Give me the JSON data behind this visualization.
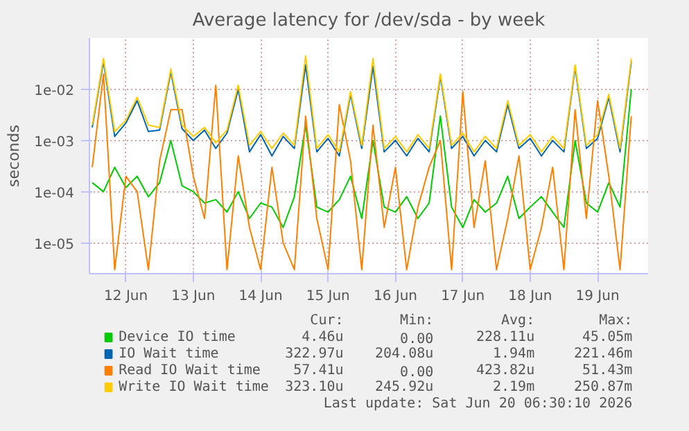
{
  "chart_data": {
    "type": "line",
    "title": "Average latency for /dev/sda - by week",
    "ylabel": "seconds",
    "log": "y",
    "grid": true,
    "legend": "bottom",
    "line_style": "solid",
    "ylim": [
      2.5e-06,
      0.1
    ],
    "yticks": [
      {
        "value": 1e-05,
        "label": "1e-05"
      },
      {
        "value": 0.0001,
        "label": "1e-04"
      },
      {
        "value": 0.001,
        "label": "1e-03"
      },
      {
        "value": 0.01,
        "label": "1e-02"
      }
    ],
    "xlim": [
      "2026-06-11T11:00",
      "2026-06-19T18:00"
    ],
    "xticks": [
      {
        "value": "2026-06-12",
        "label": "12 Jun"
      },
      {
        "value": "2026-06-13",
        "label": "13 Jun"
      },
      {
        "value": "2026-06-14",
        "label": "14 Jun"
      },
      {
        "value": "2026-06-15",
        "label": "15 Jun"
      },
      {
        "value": "2026-06-16",
        "label": "16 Jun"
      },
      {
        "value": "2026-06-17",
        "label": "17 Jun"
      },
      {
        "value": "2026-06-18",
        "label": "18 Jun"
      },
      {
        "value": "2026-06-19",
        "label": "19 Jun"
      }
    ],
    "x": [
      "2026-06-11T12:00",
      "2026-06-11T16:00",
      "2026-06-11T20:00",
      "2026-06-12T00:00",
      "2026-06-12T04:00",
      "2026-06-12T08:00",
      "2026-06-12T12:00",
      "2026-06-12T16:00",
      "2026-06-12T20:00",
      "2026-06-13T00:00",
      "2026-06-13T04:00",
      "2026-06-13T08:00",
      "2026-06-13T12:00",
      "2026-06-13T16:00",
      "2026-06-13T20:00",
      "2026-06-14T00:00",
      "2026-06-14T04:00",
      "2026-06-14T08:00",
      "2026-06-14T12:00",
      "2026-06-14T16:00",
      "2026-06-14T20:00",
      "2026-06-15T00:00",
      "2026-06-15T04:00",
      "2026-06-15T08:00",
      "2026-06-15T12:00",
      "2026-06-15T16:00",
      "2026-06-15T20:00",
      "2026-06-16T00:00",
      "2026-06-16T04:00",
      "2026-06-16T08:00",
      "2026-06-16T12:00",
      "2026-06-16T16:00",
      "2026-06-16T20:00",
      "2026-06-17T00:00",
      "2026-06-17T04:00",
      "2026-06-17T08:00",
      "2026-06-17T12:00",
      "2026-06-17T16:00",
      "2026-06-17T20:00",
      "2026-06-18T00:00",
      "2026-06-18T04:00",
      "2026-06-18T08:00",
      "2026-06-18T12:00",
      "2026-06-18T16:00",
      "2026-06-18T20:00",
      "2026-06-19T00:00",
      "2026-06-19T04:00",
      "2026-06-19T08:00",
      "2026-06-19T12:00"
    ],
    "series": [
      {
        "name": "Device IO time",
        "color": "#00cc00",
        "values": [
          0.00015,
          0.0001,
          0.0003,
          0.00012,
          0.0002,
          8e-05,
          0.00015,
          0.001,
          0.00013,
          0.0001,
          6e-05,
          7e-05,
          4e-05,
          0.0001,
          3e-05,
          6e-05,
          5e-05,
          2e-05,
          8e-05,
          0.002,
          5e-05,
          4e-05,
          7e-05,
          0.0002,
          3e-05,
          0.001,
          5e-05,
          4e-05,
          8e-05,
          3e-05,
          6e-05,
          0.003,
          5e-05,
          2e-05,
          7e-05,
          4e-05,
          6e-05,
          0.0002,
          3e-05,
          5e-05,
          8e-05,
          4e-05,
          2e-05,
          0.001,
          6e-05,
          4e-05,
          0.00015,
          5e-05,
          0.01
        ]
      },
      {
        "name": "IO Wait time",
        "color": "#0066b3",
        "values": [
          0.0018,
          0.035,
          0.0012,
          0.0022,
          0.006,
          0.0015,
          0.0016,
          0.022,
          0.0017,
          0.001,
          0.0016,
          0.0007,
          0.0014,
          0.01,
          0.0006,
          0.0013,
          0.0005,
          0.0012,
          0.0007,
          0.03,
          0.0006,
          0.0011,
          0.0005,
          0.008,
          0.0007,
          0.028,
          0.0006,
          0.001,
          0.0005,
          0.0011,
          0.0006,
          0.018,
          0.0007,
          0.0012,
          0.0005,
          0.001,
          0.0006,
          0.005,
          0.0007,
          0.0011,
          0.0005,
          0.001,
          0.0006,
          0.027,
          0.0007,
          0.0011,
          0.007,
          0.0006,
          0.035
        ]
      },
      {
        "name": "Read IO Wait time",
        "color": "#ff8000",
        "values": [
          0.0003,
          0.02,
          3e-06,
          0.0002,
          0.0001,
          3e-06,
          0.0004,
          0.004,
          0.004,
          0.0002,
          3e-05,
          0.012,
          3e-06,
          0.0005,
          2e-05,
          3e-06,
          0.0003,
          1e-05,
          3e-06,
          0.003,
          3e-05,
          3e-06,
          0.005,
          0.0004,
          3e-06,
          0.002,
          2e-05,
          0.0003,
          3e-06,
          5e-05,
          0.0003,
          0.001,
          3e-06,
          0.009,
          2e-05,
          0.0004,
          3e-06,
          3e-05,
          0.0005,
          3e-06,
          2e-05,
          0.0003,
          3e-06,
          0.004,
          3e-05,
          0.006,
          0.0002,
          3e-06,
          0.003
        ]
      },
      {
        "name": "Write IO Wait time",
        "color": "#ffcc00",
        "values": [
          0.002,
          0.04,
          0.0015,
          0.0025,
          0.007,
          0.002,
          0.0018,
          0.025,
          0.002,
          0.0012,
          0.0018,
          0.0009,
          0.0016,
          0.012,
          0.0008,
          0.0015,
          0.0007,
          0.0014,
          0.0008,
          0.045,
          0.0007,
          0.0013,
          0.0006,
          0.009,
          0.0008,
          0.04,
          0.0007,
          0.0012,
          0.0006,
          0.0013,
          0.0007,
          0.02,
          0.0008,
          0.0014,
          0.0006,
          0.0012,
          0.0007,
          0.006,
          0.0008,
          0.0013,
          0.0006,
          0.0012,
          0.0007,
          0.03,
          0.0008,
          0.0013,
          0.008,
          0.0007,
          0.04
        ]
      }
    ],
    "annotations": [
      "Cur:",
      "Min:",
      "Avg:",
      "Max:",
      "4.46u",
      "0.00",
      "228.11u",
      "45.05m",
      "322.97u",
      "204.08u",
      "1.94m",
      "221.46m",
      "57.41u",
      "0.00",
      "423.82u",
      "51.43m",
      "323.10u",
      "245.92u",
      "2.19m",
      "250.87m",
      "Last update: Sat Jun 20 06:30:10 2026"
    ]
  }
}
